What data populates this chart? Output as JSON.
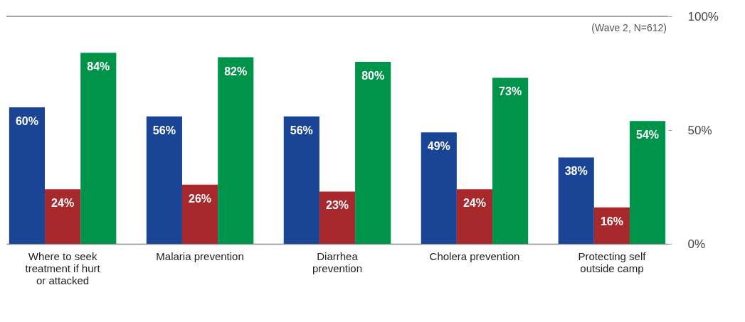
{
  "chart_data": {
    "type": "bar",
    "categories": [
      "Where to seek treatment if hurt or attacked",
      "Malaria prevention",
      "Diarrhea prevention",
      "Cholera prevention",
      "Protecting self outside camp"
    ],
    "series": [
      {
        "color": "#1a4496",
        "values": [
          60,
          56,
          56,
          49,
          38
        ],
        "value_labels": [
          "60%",
          "56%",
          "56%",
          "49%",
          "38%"
        ]
      },
      {
        "color": "#a8292b",
        "values": [
          24,
          26,
          23,
          24,
          16
        ],
        "value_labels": [
          "24%",
          "26%",
          "23%",
          "24%",
          "16%"
        ]
      },
      {
        "color": "#00944a",
        "values": [
          84,
          82,
          80,
          73,
          54
        ],
        "value_labels": [
          "84%",
          "82%",
          "80%",
          "73%",
          "54%"
        ]
      }
    ],
    "ylim": [
      0,
      100
    ],
    "yticks": [
      {
        "value": 0,
        "label": "0%"
      },
      {
        "value": 50,
        "label": "50%"
      },
      {
        "value": 100,
        "label": "100%"
      }
    ],
    "ref_lines": [
      {
        "axis": "y",
        "value": 100
      }
    ],
    "annotations": [
      "(Wave 2, N=612)"
    ],
    "grid": false,
    "legend": false
  }
}
